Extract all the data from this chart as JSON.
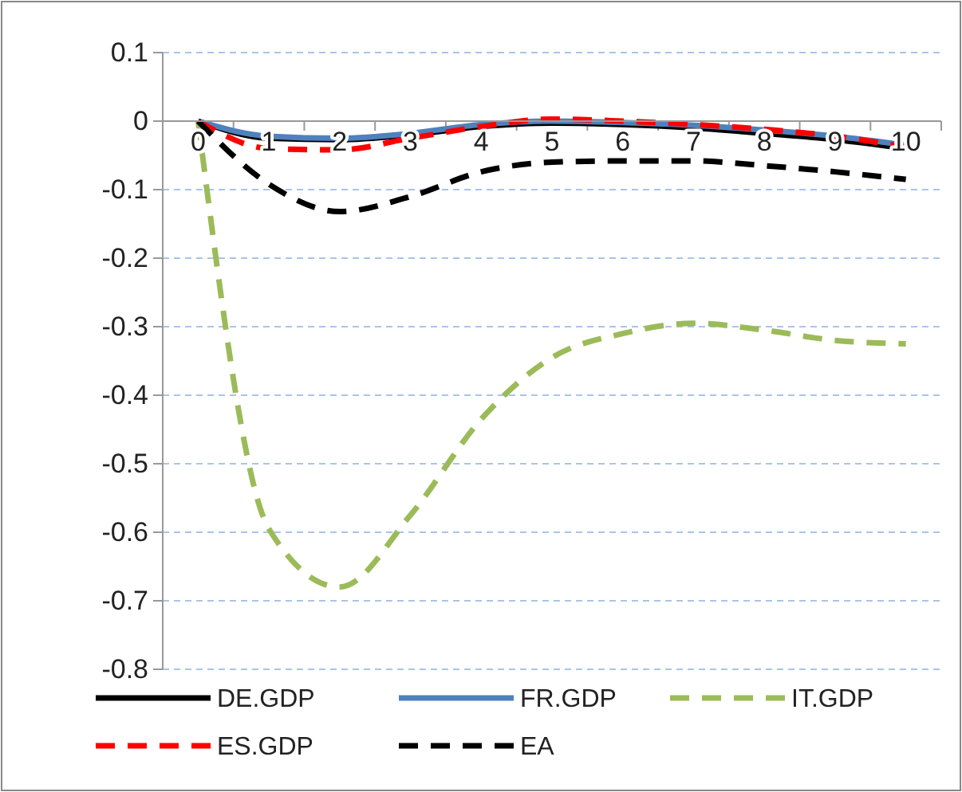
{
  "chart_data": {
    "type": "line",
    "categories": [
      "0",
      "1",
      "2",
      "3",
      "4",
      "5",
      "6",
      "7",
      "8",
      "9",
      "10"
    ],
    "series": [
      {
        "name": "DE.GDP",
        "color": "#000000",
        "line_style": "solid",
        "values": [
          0,
          -0.025,
          -0.027,
          -0.02,
          -0.008,
          -0.003,
          -0.005,
          -0.01,
          -0.018,
          -0.027,
          -0.04
        ]
      },
      {
        "name": "FR.GDP",
        "color": "#4f81bd",
        "line_style": "solid",
        "values": [
          0,
          -0.022,
          -0.025,
          -0.018,
          -0.005,
          0,
          -0.002,
          -0.006,
          -0.013,
          -0.022,
          -0.035
        ]
      },
      {
        "name": "IT.GDP",
        "color": "#9bbb59",
        "line_style": "dashed",
        "values": [
          0,
          -0.595,
          -0.68,
          -0.575,
          -0.435,
          -0.345,
          -0.31,
          -0.295,
          -0.305,
          -0.32,
          -0.325
        ]
      },
      {
        "name": "ES.GDP",
        "color": "#ff0000",
        "line_style": "dashed",
        "values": [
          0,
          -0.04,
          -0.042,
          -0.025,
          -0.008,
          0.003,
          0,
          -0.005,
          -0.012,
          -0.022,
          -0.038
        ]
      },
      {
        "name": "EA",
        "color": "#000000",
        "line_style": "dashed",
        "values": [
          0,
          -0.092,
          -0.132,
          -0.11,
          -0.074,
          -0.06,
          -0.058,
          -0.058,
          -0.065,
          -0.074,
          -0.085
        ]
      }
    ],
    "ylim": [
      -0.8,
      0.1
    ],
    "yticks": [
      -0.8,
      -0.7,
      -0.6,
      -0.5,
      -0.4,
      -0.3,
      -0.2,
      -0.1,
      0,
      0.1
    ],
    "grid": "y",
    "legend": "bottom",
    "marker": "none"
  }
}
